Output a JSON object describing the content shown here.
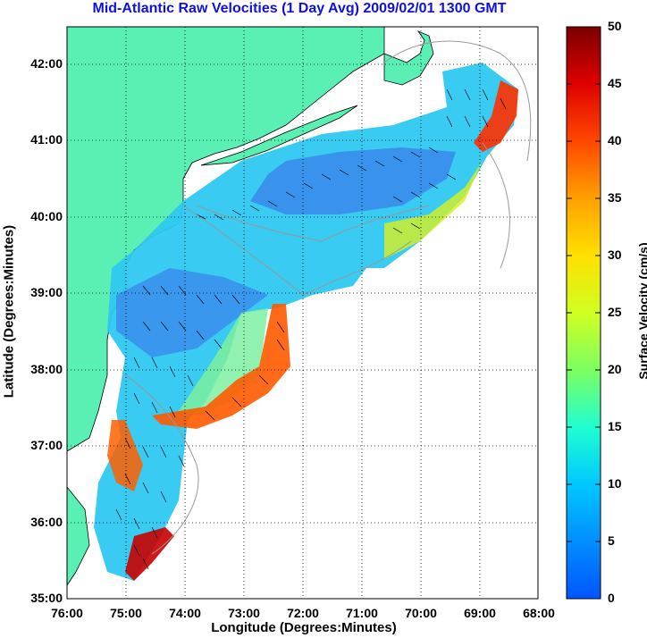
{
  "title": "Mid-Atlantic Raw Velocities (1 Day Avg) 2009/02/01 1300 GMT",
  "x_axis": {
    "label": "Longitude (Degrees:Minutes)",
    "ticks": [
      "76:00",
      "75:00",
      "74:00",
      "73:00",
      "72:00",
      "71:00",
      "70:00",
      "69:00",
      "68:00"
    ]
  },
  "y_axis": {
    "label": "Latitude (Degrees:Minutes)",
    "ticks": [
      "42:00",
      "41:00",
      "40:00",
      "39:00",
      "38:00",
      "37:00",
      "36:00",
      "35:00"
    ]
  },
  "colorbar": {
    "label": "Surface Velocity (cm/s)",
    "ticks": [
      "50",
      "45",
      "40",
      "35",
      "30",
      "25",
      "20",
      "15",
      "10",
      "5",
      "0"
    ],
    "min": 0,
    "max": 50
  },
  "colors": {
    "land": "#5af0b4",
    "title": "#1010e0"
  },
  "chart_data": {
    "type": "heatmap",
    "title": "Mid-Atlantic Raw Velocities (1 Day Avg) 2009/02/01 1300 GMT",
    "xlabel": "Longitude (Degrees:Minutes)",
    "ylabel": "Latitude (Degrees:Minutes)",
    "xlim": [
      -76,
      -68
    ],
    "ylim": [
      35,
      42.5
    ],
    "colorbar_range": [
      0,
      50
    ],
    "colorbar_label": "Surface Velocity (cm/s)",
    "grid": true
  }
}
